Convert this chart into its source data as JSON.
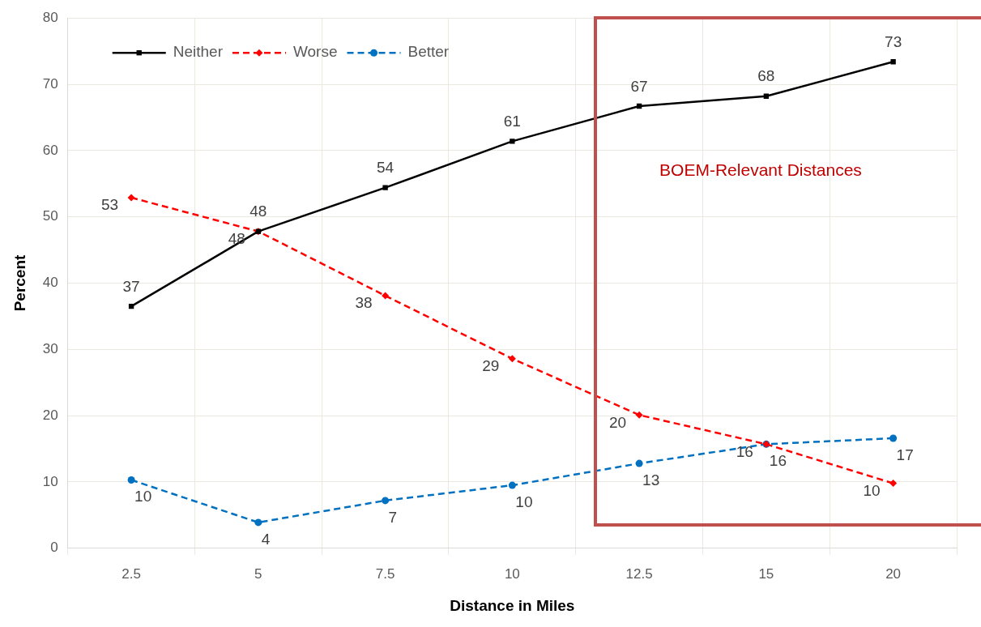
{
  "chart_data": {
    "type": "line",
    "xlabel": "Distance in Miles",
    "ylabel": "Percent",
    "categories": [
      "2.5",
      "5",
      "7.5",
      "10",
      "12.5",
      "15",
      "20"
    ],
    "series": [
      {
        "name": "Neither",
        "color": "#000000",
        "marker": "square",
        "line_style": "solid",
        "values": [
          36.5,
          47.8,
          54.4,
          61.4,
          66.7,
          68.2,
          73.4
        ],
        "value_labels": [
          "37",
          "48",
          "54",
          "61",
          "67",
          "68",
          "73"
        ]
      },
      {
        "name": "Worse",
        "color": "#ff0000",
        "marker": "diamond",
        "line_style": "dashed",
        "values": [
          52.9,
          47.8,
          38.1,
          28.6,
          20.1,
          15.7,
          9.8
        ],
        "value_labels": [
          "53",
          "48",
          "38",
          "29",
          "20",
          "16",
          "10"
        ]
      },
      {
        "name": "Better",
        "color": "#0070c0",
        "marker": "circle",
        "line_style": "dashed",
        "values": [
          10.3,
          3.9,
          7.2,
          9.5,
          12.8,
          15.7,
          16.6
        ],
        "value_labels": [
          "10",
          "4",
          "7",
          "10",
          "13",
          "16",
          "17"
        ]
      }
    ],
    "ylim": [
      0,
      80
    ],
    "yticks": [
      0,
      10,
      20,
      30,
      40,
      50,
      60,
      70,
      80
    ],
    "grid": true,
    "legend": "top left",
    "annotations": [
      "BOEM-Relevant Distances"
    ]
  }
}
